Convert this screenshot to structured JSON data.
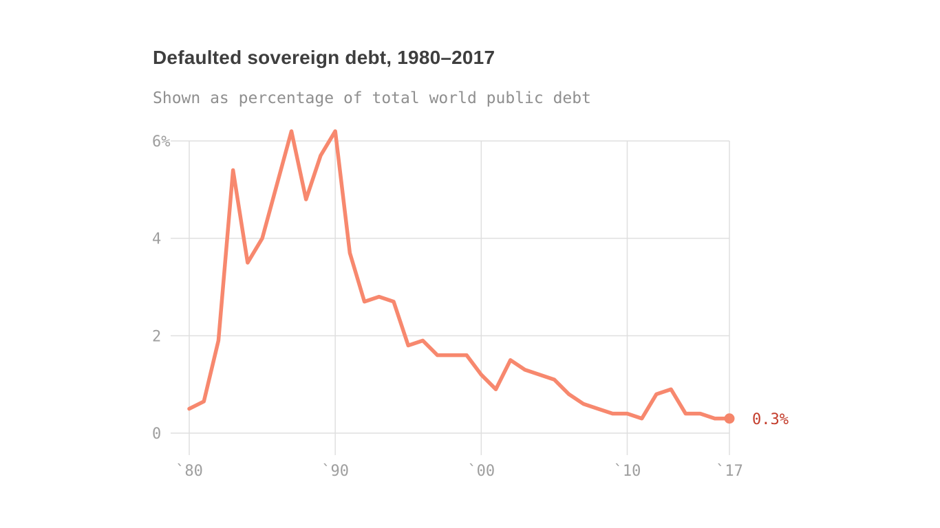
{
  "header": {
    "title": "Defaulted sovereign debt, 1980–2017",
    "subtitle": "Shown as percentage of total world public debt"
  },
  "chart_data": {
    "type": "line",
    "title": "Defaulted sovereign debt, 1980–2017",
    "subtitle": "Shown as percentage of total world public debt",
    "ylabel": "percentage of total world public debt",
    "xlabel": "",
    "xlim": [
      1980,
      2017
    ],
    "ylim": [
      0,
      6.4
    ],
    "grid": true,
    "legend": false,
    "x": [
      1980,
      1981,
      1982,
      1983,
      1984,
      1985,
      1986,
      1987,
      1988,
      1989,
      1990,
      1991,
      1992,
      1993,
      1994,
      1995,
      1996,
      1997,
      1998,
      1999,
      2000,
      2001,
      2002,
      2003,
      2004,
      2005,
      2006,
      2007,
      2008,
      2009,
      2010,
      2011,
      2012,
      2013,
      2014,
      2015,
      2016,
      2017
    ],
    "values": [
      0.5,
      0.65,
      1.9,
      5.4,
      3.5,
      4.0,
      5.1,
      6.2,
      4.8,
      5.7,
      6.2,
      3.7,
      2.7,
      2.8,
      2.7,
      1.8,
      1.9,
      1.6,
      1.6,
      1.6,
      1.2,
      0.9,
      1.5,
      1.3,
      1.2,
      1.1,
      0.8,
      0.6,
      0.5,
      0.4,
      0.4,
      0.3,
      0.8,
      0.9,
      0.4,
      0.4,
      0.3,
      0.3
    ],
    "x_ticks": [
      {
        "year": 1980,
        "label": "`80"
      },
      {
        "year": 1990,
        "label": "`90"
      },
      {
        "year": 2000,
        "label": "`00"
      },
      {
        "year": 2010,
        "label": "`10"
      },
      {
        "year": 2017,
        "label": "`17"
      }
    ],
    "y_ticks": [
      {
        "value": 6,
        "label": "6%"
      },
      {
        "value": 4,
        "label": "4"
      },
      {
        "value": 2,
        "label": "2"
      },
      {
        "value": 0,
        "label": "0"
      }
    ],
    "end_point": {
      "year": 2017,
      "value": 0.3,
      "label": "0.3%"
    },
    "colors": {
      "line": "#f7886e",
      "end_dot": "#f5856a",
      "end_label": "#c33c2b",
      "grid": "#dfdfdf",
      "axis_text": "#9e9e9e",
      "title_text": "#3e3e3e",
      "subtitle_text": "#8f8f8f",
      "background": "#ffffff"
    }
  }
}
